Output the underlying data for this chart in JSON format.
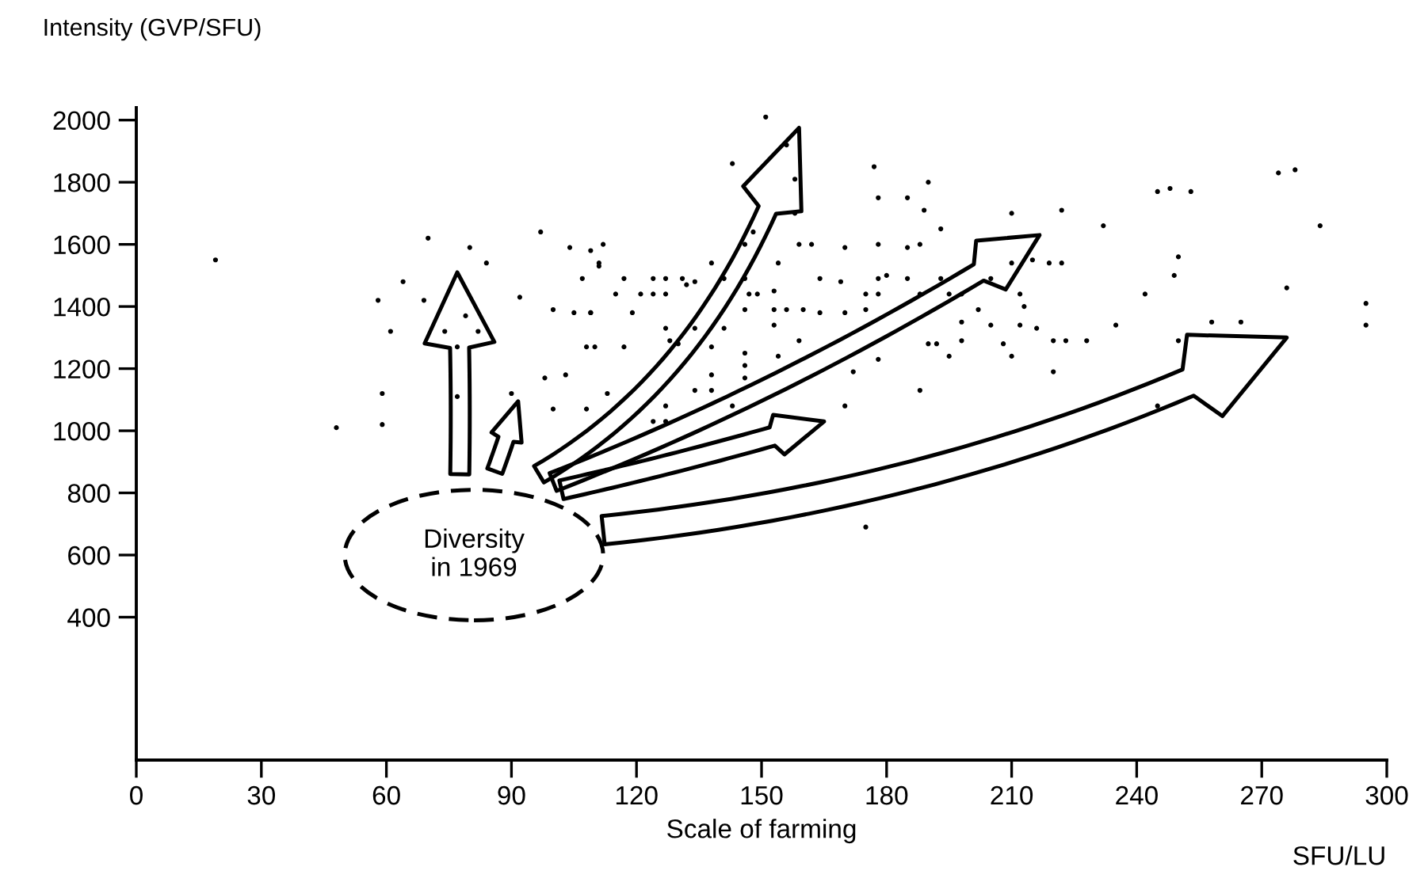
{
  "chart_data": {
    "type": "scatter",
    "ylabel": "Intensity (GVP/SFU)",
    "xlabel": "Scale of farming",
    "annotations": [
      "Diversity\nin 1969",
      "SFU/LU"
    ],
    "xlim": [
      0,
      300
    ],
    "xticks": [
      0,
      30,
      60,
      90,
      120,
      150,
      180,
      210,
      240,
      270,
      300
    ],
    "ylim": [
      -60,
      2040
    ],
    "yticks": [
      400,
      600,
      800,
      1000,
      1200,
      1400,
      1600,
      1800,
      2000
    ],
    "grid": false,
    "legend": false,
    "marker": "circle",
    "series": [
      {
        "color": "#000000",
        "x": [
          19,
          70,
          80,
          84,
          97,
          64,
          58,
          69,
          79,
          61,
          74,
          82,
          77,
          104,
          109,
          111,
          107,
          100,
          105,
          109,
          108,
          98,
          103,
          59,
          77,
          90,
          100,
          108,
          48,
          59,
          92,
          151,
          156,
          143,
          158,
          158,
          177,
          178,
          185,
          190,
          189,
          193,
          210,
          146,
          148,
          159,
          162,
          170,
          178,
          185,
          188,
          154,
          138,
          112,
          111,
          117,
          124,
          127,
          131,
          134,
          121,
          124,
          127,
          115,
          132,
          141,
          146,
          147,
          149,
          146,
          153,
          153,
          153,
          156,
          160,
          164,
          169,
          164,
          170,
          178,
          180,
          185,
          175,
          178,
          175,
          188,
          193,
          195,
          198,
          202,
          205,
          210,
          215,
          219,
          212,
          213,
          205,
          212,
          216,
          198,
          198,
          192,
          195,
          190,
          208,
          210,
          220,
          220,
          188,
          178,
          172,
          170,
          159,
          154,
          146,
          146,
          146,
          138,
          138,
          130,
          128,
          117,
          110,
          109,
          119,
          127,
          134,
          141,
          138,
          134,
          127,
          113,
          124,
          127,
          143,
          274,
          278,
          245,
          248,
          253,
          222,
          232,
          284,
          222,
          250,
          249,
          242,
          276,
          295,
          295,
          235,
          258,
          265,
          250,
          223,
          228,
          245,
          175
        ],
        "values": [
          1550,
          1620,
          1590,
          1540,
          1640,
          1480,
          1420,
          1420,
          1370,
          1320,
          1320,
          1320,
          1270,
          1590,
          1580,
          1540,
          1490,
          1390,
          1380,
          1380,
          1270,
          1170,
          1180,
          1120,
          1110,
          1120,
          1070,
          1070,
          1010,
          1020,
          1430,
          2010,
          1920,
          1860,
          1810,
          1700,
          1850,
          1750,
          1750,
          1800,
          1710,
          1650,
          1700,
          1600,
          1640,
          1600,
          1600,
          1590,
          1600,
          1590,
          1600,
          1540,
          1540,
          1600,
          1530,
          1490,
          1490,
          1490,
          1490,
          1480,
          1440,
          1440,
          1440,
          1440,
          1470,
          1490,
          1490,
          1440,
          1440,
          1390,
          1450,
          1390,
          1340,
          1390,
          1390,
          1490,
          1480,
          1380,
          1380,
          1490,
          1500,
          1490,
          1440,
          1440,
          1390,
          1440,
          1490,
          1440,
          1440,
          1390,
          1490,
          1540,
          1550,
          1540,
          1440,
          1400,
          1340,
          1340,
          1330,
          1350,
          1290,
          1280,
          1240,
          1280,
          1280,
          1240,
          1290,
          1190,
          1130,
          1230,
          1190,
          1080,
          1290,
          1240,
          1250,
          1210,
          1170,
          1180,
          1270,
          1280,
          1290,
          1270,
          1270,
          1380,
          1380,
          1330,
          1330,
          1330,
          1130,
          1130,
          1080,
          1120,
          1030,
          1030,
          1080,
          1830,
          1840,
          1770,
          1780,
          1770,
          1710,
          1660,
          1660,
          1540,
          1560,
          1500,
          1440,
          1460,
          1410,
          1340,
          1340,
          1350,
          1350,
          1290,
          1290,
          1290,
          1080,
          690
        ]
      }
    ]
  }
}
